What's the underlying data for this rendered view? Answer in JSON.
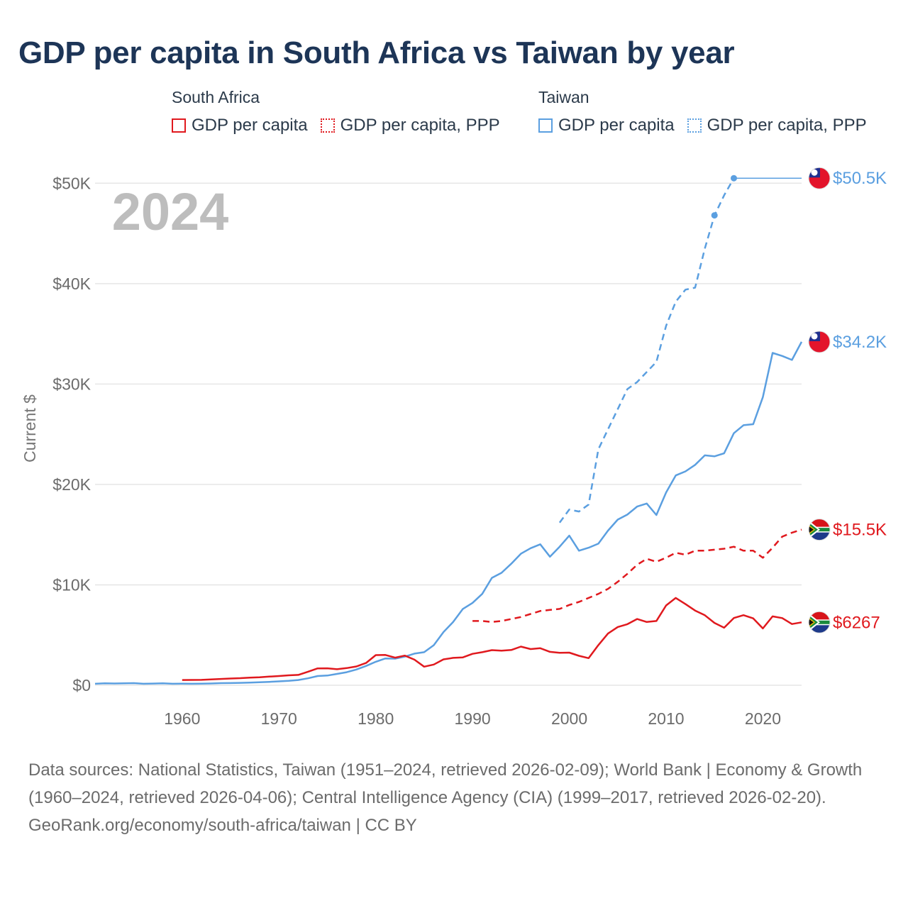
{
  "title": "GDP per capita in South Africa vs Taiwan by year",
  "legend": {
    "south_africa": {
      "name": "South Africa",
      "gdp": "GDP per capita",
      "ppp": "GDP per capita, PPP"
    },
    "taiwan": {
      "name": "Taiwan",
      "gdp": "GDP per capita",
      "ppp": "GDP per capita, PPP"
    }
  },
  "colors": {
    "south_africa": "#e0191e",
    "taiwan": "#5b9fe0",
    "year_label": "#bdbdbd",
    "title": "#1d3557"
  },
  "icons": {
    "south_africa": "south-africa-flag-icon",
    "taiwan": "taiwan-flag-icon"
  },
  "chart_data": {
    "type": "line",
    "title": "GDP per capita in South Africa vs Taiwan by year",
    "year_label": "2024",
    "ylabel": "Current $",
    "xlabel": "",
    "xlim": [
      1951,
      2024
    ],
    "ylim": [
      0,
      52000
    ],
    "x_ticks": [
      1960,
      1970,
      1980,
      1990,
      2000,
      2010,
      2020
    ],
    "y_ticks": [
      {
        "value": 0,
        "label": "$0"
      },
      {
        "value": 10000,
        "label": "$10K"
      },
      {
        "value": 20000,
        "label": "$20K"
      },
      {
        "value": 30000,
        "label": "$30K"
      },
      {
        "value": 40000,
        "label": "$40K"
      },
      {
        "value": 50000,
        "label": "$50K"
      }
    ],
    "series": [
      {
        "name": "Taiwan GDP per capita PPP",
        "country": "taiwan",
        "dash": "dashed",
        "end_label": "$50.5K",
        "markers": [
          2015,
          2017
        ],
        "points": [
          [
            1999,
            16200
          ],
          [
            2000,
            17500
          ],
          [
            2001,
            17300
          ],
          [
            2002,
            18000
          ],
          [
            2003,
            23500
          ],
          [
            2004,
            25500
          ],
          [
            2005,
            27500
          ],
          [
            2006,
            29500
          ],
          [
            2007,
            30200
          ],
          [
            2008,
            31200
          ],
          [
            2009,
            32200
          ],
          [
            2010,
            35800
          ],
          [
            2011,
            38200
          ],
          [
            2012,
            39400
          ],
          [
            2013,
            39600
          ],
          [
            2014,
            43500
          ],
          [
            2015,
            46800
          ],
          [
            2016,
            48800
          ],
          [
            2017,
            50500
          ],
          [
            2024,
            50500
          ]
        ]
      },
      {
        "name": "Taiwan GDP per capita",
        "country": "taiwan",
        "dash": "solid",
        "end_label": "$34.2K",
        "points": [
          [
            1951,
            150
          ],
          [
            1952,
            200
          ],
          [
            1953,
            180
          ],
          [
            1954,
            190
          ],
          [
            1955,
            210
          ],
          [
            1956,
            150
          ],
          [
            1957,
            170
          ],
          [
            1958,
            190
          ],
          [
            1959,
            150
          ],
          [
            1960,
            160
          ],
          [
            1961,
            150
          ],
          [
            1962,
            160
          ],
          [
            1963,
            180
          ],
          [
            1964,
            210
          ],
          [
            1965,
            220
          ],
          [
            1966,
            240
          ],
          [
            1967,
            270
          ],
          [
            1968,
            300
          ],
          [
            1969,
            340
          ],
          [
            1970,
            390
          ],
          [
            1971,
            440
          ],
          [
            1972,
            520
          ],
          [
            1973,
            690
          ],
          [
            1974,
            920
          ],
          [
            1975,
            970
          ],
          [
            1976,
            1130
          ],
          [
            1977,
            1300
          ],
          [
            1978,
            1570
          ],
          [
            1979,
            1920
          ],
          [
            1980,
            2340
          ],
          [
            1981,
            2670
          ],
          [
            1982,
            2650
          ],
          [
            1983,
            2850
          ],
          [
            1984,
            3150
          ],
          [
            1985,
            3290
          ],
          [
            1986,
            3990
          ],
          [
            1987,
            5300
          ],
          [
            1988,
            6300
          ],
          [
            1989,
            7600
          ],
          [
            1990,
            8200
          ],
          [
            1991,
            9100
          ],
          [
            1992,
            10700
          ],
          [
            1993,
            11200
          ],
          [
            1994,
            12100
          ],
          [
            1995,
            13100
          ],
          [
            1996,
            13650
          ],
          [
            1997,
            14040
          ],
          [
            1998,
            12800
          ],
          [
            1999,
            13800
          ],
          [
            2000,
            14900
          ],
          [
            2001,
            13400
          ],
          [
            2002,
            13700
          ],
          [
            2003,
            14100
          ],
          [
            2004,
            15400
          ],
          [
            2005,
            16500
          ],
          [
            2006,
            17000
          ],
          [
            2007,
            17800
          ],
          [
            2008,
            18100
          ],
          [
            2009,
            16960
          ],
          [
            2010,
            19200
          ],
          [
            2011,
            20900
          ],
          [
            2012,
            21300
          ],
          [
            2013,
            21950
          ],
          [
            2014,
            22900
          ],
          [
            2015,
            22800
          ],
          [
            2016,
            23100
          ],
          [
            2017,
            25100
          ],
          [
            2018,
            25900
          ],
          [
            2019,
            26000
          ],
          [
            2020,
            28700
          ],
          [
            2021,
            33100
          ],
          [
            2022,
            32800
          ],
          [
            2023,
            32400
          ],
          [
            2024,
            34200
          ]
        ]
      },
      {
        "name": "South Africa GDP per capita PPP",
        "country": "south_africa",
        "dash": "dashed",
        "end_label": "$15.5K",
        "points": [
          [
            1990,
            6400
          ],
          [
            1991,
            6400
          ],
          [
            1992,
            6300
          ],
          [
            1993,
            6400
          ],
          [
            1994,
            6600
          ],
          [
            1995,
            6800
          ],
          [
            1996,
            7100
          ],
          [
            1997,
            7400
          ],
          [
            1998,
            7500
          ],
          [
            1999,
            7600
          ],
          [
            2000,
            8000
          ],
          [
            2001,
            8300
          ],
          [
            2002,
            8700
          ],
          [
            2003,
            9100
          ],
          [
            2004,
            9600
          ],
          [
            2005,
            10300
          ],
          [
            2006,
            11100
          ],
          [
            2007,
            12000
          ],
          [
            2008,
            12600
          ],
          [
            2009,
            12300
          ],
          [
            2010,
            12700
          ],
          [
            2011,
            13200
          ],
          [
            2012,
            13000
          ],
          [
            2013,
            13400
          ],
          [
            2014,
            13400
          ],
          [
            2015,
            13500
          ],
          [
            2016,
            13600
          ],
          [
            2017,
            13800
          ],
          [
            2018,
            13400
          ],
          [
            2019,
            13400
          ],
          [
            2020,
            12700
          ],
          [
            2021,
            13700
          ],
          [
            2022,
            14800
          ],
          [
            2023,
            15200
          ],
          [
            2024,
            15500
          ]
        ]
      },
      {
        "name": "South Africa GDP per capita",
        "country": "south_africa",
        "dash": "solid",
        "end_label": "$6267",
        "points": [
          [
            1960,
            520
          ],
          [
            1961,
            530
          ],
          [
            1962,
            540
          ],
          [
            1963,
            580
          ],
          [
            1964,
            630
          ],
          [
            1965,
            670
          ],
          [
            1966,
            710
          ],
          [
            1967,
            760
          ],
          [
            1968,
            790
          ],
          [
            1969,
            860
          ],
          [
            1970,
            920
          ],
          [
            1971,
            990
          ],
          [
            1972,
            1030
          ],
          [
            1973,
            1350
          ],
          [
            1974,
            1680
          ],
          [
            1975,
            1690
          ],
          [
            1976,
            1600
          ],
          [
            1977,
            1710
          ],
          [
            1978,
            1870
          ],
          [
            1979,
            2220
          ],
          [
            1980,
            3000
          ],
          [
            1981,
            3020
          ],
          [
            1982,
            2750
          ],
          [
            1983,
            2950
          ],
          [
            1984,
            2550
          ],
          [
            1985,
            1850
          ],
          [
            1986,
            2060
          ],
          [
            1987,
            2580
          ],
          [
            1988,
            2730
          ],
          [
            1989,
            2780
          ],
          [
            1990,
            3130
          ],
          [
            1991,
            3290
          ],
          [
            1992,
            3500
          ],
          [
            1993,
            3440
          ],
          [
            1994,
            3510
          ],
          [
            1995,
            3850
          ],
          [
            1996,
            3600
          ],
          [
            1997,
            3690
          ],
          [
            1998,
            3330
          ],
          [
            1999,
            3230
          ],
          [
            2000,
            3250
          ],
          [
            2001,
            2930
          ],
          [
            2002,
            2700
          ],
          [
            2003,
            4000
          ],
          [
            2004,
            5150
          ],
          [
            2005,
            5800
          ],
          [
            2006,
            6080
          ],
          [
            2007,
            6600
          ],
          [
            2008,
            6300
          ],
          [
            2009,
            6400
          ],
          [
            2010,
            7950
          ],
          [
            2011,
            8700
          ],
          [
            2012,
            8080
          ],
          [
            2013,
            7440
          ],
          [
            2014,
            6970
          ],
          [
            2015,
            6210
          ],
          [
            2016,
            5730
          ],
          [
            2017,
            6700
          ],
          [
            2018,
            6980
          ],
          [
            2019,
            6660
          ],
          [
            2020,
            5660
          ],
          [
            2021,
            6860
          ],
          [
            2022,
            6690
          ],
          [
            2023,
            6100
          ],
          [
            2024,
            6267
          ]
        ]
      }
    ]
  },
  "footer": {
    "sources": "Data sources: National Statistics, Taiwan (1951–2024, retrieved 2026-02-09); World Bank | Economy & Growth (1960–2024, retrieved 2026-04-06); Central Intelligence Agency (CIA) (1999–2017, retrieved 2026-02-20).",
    "credit": "GeoRank.org/economy/south-africa/taiwan | CC BY"
  }
}
